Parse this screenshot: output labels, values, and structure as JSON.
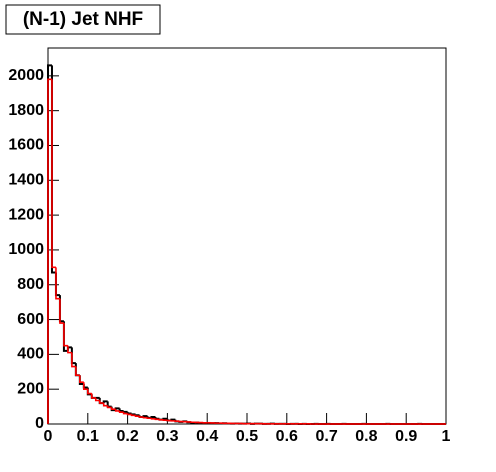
{
  "chart_data": {
    "type": "histogram",
    "title": "(N-1) Jet NHF",
    "bins": [
      0,
      0.01,
      0.02,
      0.03,
      0.04,
      0.05,
      0.06,
      0.07,
      0.08,
      0.09,
      0.1,
      0.11,
      0.12,
      0.13,
      0.14,
      0.15,
      0.16,
      0.17,
      0.18,
      0.19,
      0.2,
      0.21,
      0.22,
      0.23,
      0.24,
      0.25,
      0.26,
      0.27,
      0.28,
      0.29,
      0.3,
      0.31,
      0.32,
      0.33,
      0.34,
      0.35,
      0.36,
      0.37,
      0.38,
      0.39,
      0.4,
      0.41,
      0.42,
      0.43,
      0.44,
      0.45,
      0.46,
      0.47,
      0.48,
      0.49,
      0.5,
      0.51,
      0.52,
      0.53,
      0.54,
      0.55,
      0.56,
      0.57,
      0.58,
      0.59,
      0.6,
      0.61,
      0.62,
      0.63,
      0.64,
      0.65,
      0.66,
      0.67,
      0.68,
      0.69,
      0.7,
      0.71,
      0.72,
      0.73,
      0.74,
      0.75,
      0.76,
      0.77,
      0.78,
      0.79,
      0.8,
      0.81,
      0.82,
      0.83,
      0.84,
      0.85,
      0.86,
      0.87,
      0.88,
      0.89,
      0.9,
      0.91,
      0.92,
      0.93,
      0.94,
      0.95,
      0.96,
      0.97,
      0.98,
      0.99,
      1
    ],
    "series": [
      {
        "color": "#000000",
        "values": [
          2060,
          870,
          740,
          590,
          420,
          440,
          350,
          280,
          230,
          210,
          170,
          150,
          150,
          120,
          130,
          100,
          80,
          90,
          75,
          70,
          60,
          55,
          50,
          40,
          45,
          35,
          40,
          30,
          25,
          30,
          20,
          25,
          15,
          12,
          15,
          10,
          8,
          8,
          6,
          5,
          6,
          4,
          5,
          3,
          4,
          3,
          2,
          3,
          2,
          2,
          3,
          1,
          2,
          2,
          1,
          1,
          2,
          1,
          1,
          1,
          0,
          1,
          1,
          0,
          1,
          0,
          0,
          1,
          0,
          0,
          1,
          0,
          0,
          0,
          1,
          0,
          0,
          0,
          0,
          1,
          0,
          0,
          0,
          0,
          0,
          1,
          0,
          0,
          0,
          0,
          0,
          0,
          0,
          1,
          0,
          0,
          0,
          0,
          0,
          0
        ]
      },
      {
        "color": "#ff0000",
        "values": [
          1980,
          900,
          720,
          580,
          450,
          410,
          330,
          280,
          240,
          200,
          175,
          150,
          135,
          120,
          105,
          95,
          85,
          75,
          68,
          60,
          55,
          50,
          45,
          40,
          36,
          33,
          30,
          27,
          24,
          22,
          20,
          18,
          16,
          14,
          13,
          12,
          10,
          9,
          8,
          7,
          7,
          6,
          5,
          5,
          4,
          4,
          3,
          3,
          3,
          2,
          2,
          2,
          2,
          2,
          1,
          1,
          1,
          1,
          1,
          1,
          1,
          1,
          1,
          1,
          1,
          1,
          0,
          0,
          0,
          0,
          0,
          0,
          0,
          0,
          0,
          0,
          0,
          0,
          0,
          0,
          0,
          0,
          0,
          0,
          0,
          0,
          0,
          0,
          0,
          0,
          0,
          0,
          0,
          0,
          0,
          0,
          0,
          0,
          0,
          0
        ]
      }
    ],
    "xlim": [
      0,
      1
    ],
    "xticks": [
      0,
      0.1,
      0.2,
      0.3,
      0.4,
      0.5,
      0.6,
      0.7,
      0.8,
      0.9,
      1
    ],
    "ylim": [
      0,
      2160
    ],
    "yticks": [
      0,
      200,
      400,
      600,
      800,
      1000,
      1200,
      1400,
      1600,
      1800,
      2000
    ]
  }
}
